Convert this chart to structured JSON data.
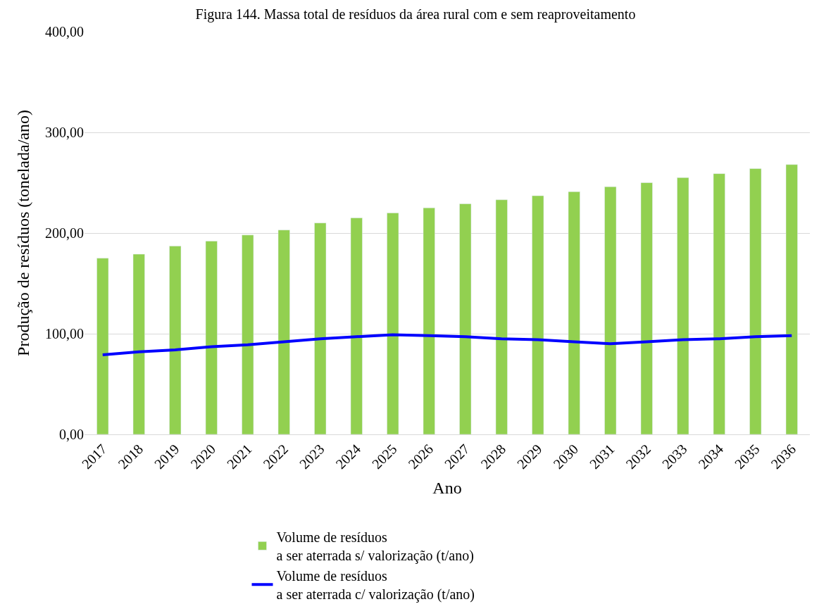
{
  "chart_data": {
    "type": "bar",
    "title": "Figura 144. Massa total de resíduos da área rural com e sem reaproveitamento",
    "xlabel": "Ano",
    "ylabel": "Produção de resíduos (tonelada/ano)",
    "categories": [
      "2017",
      "2018",
      "2019",
      "2020",
      "2021",
      "2022",
      "2023",
      "2024",
      "2025",
      "2026",
      "2027",
      "2028",
      "2029",
      "2030",
      "2031",
      "2032",
      "2033",
      "2034",
      "2035",
      "2036"
    ],
    "series": [
      {
        "name": "Volume de resíduos\na ser aterrada s/ valorização (t/ano)",
        "color": "#92d050",
        "values": [
          175,
          179,
          187,
          192,
          198,
          203,
          210,
          215,
          220,
          225,
          229,
          233,
          237,
          241,
          246,
          250,
          255,
          259,
          264,
          268
        ]
      },
      {
        "name": "Volume de resíduos\na ser aterrada c/ valorização (t/ano)",
        "type": "line",
        "color": "#0000ff",
        "values": [
          79,
          82,
          84,
          87,
          89,
          92,
          95,
          97,
          99,
          98,
          97,
          95,
          94,
          92,
          90,
          92,
          94,
          95,
          97,
          98
        ]
      }
    ],
    "ylim": [
      0,
      400
    ],
    "yticks": [
      {
        "value": 0,
        "label": "0,00"
      },
      {
        "value": 100,
        "label": "100,00"
      },
      {
        "value": 200,
        "label": "200,00"
      },
      {
        "value": 300,
        "label": "300,00"
      },
      {
        "value": 400,
        "label": "400,00"
      }
    ],
    "grid": "y",
    "legend": "bottom",
    "marker": "none",
    "line_style": "solid"
  }
}
